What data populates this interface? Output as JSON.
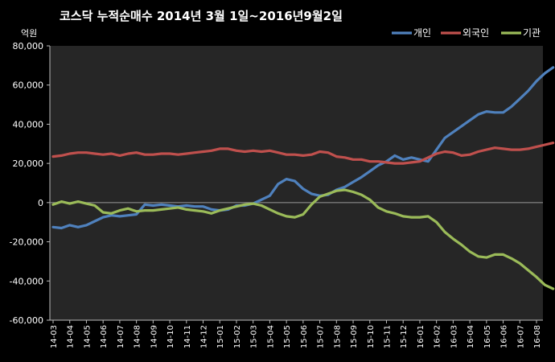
{
  "chart_data": {
    "type": "line",
    "title": "코스닥  누적순매수 2014년 3월 1일~2016년9월2일",
    "unit_label": "억원",
    "ylim": [
      -60000,
      80000
    ],
    "ytick_values": [
      80000,
      60000,
      40000,
      20000,
      0,
      -20000,
      -40000,
      -60000
    ],
    "ytick_labels": [
      "80,000",
      "60,000",
      "40,000",
      "20,000",
      "0",
      "-20,000",
      "-40,000",
      "-60,000"
    ],
    "categories": [
      "14-03",
      "14-04",
      "14-05",
      "14-06",
      "14-07",
      "14-08",
      "14-09",
      "14-10",
      "14-11",
      "14-12",
      "15-01",
      "15-02",
      "15-03",
      "15-04",
      "15-05",
      "15-06",
      "15-07",
      "15-08",
      "15-09",
      "15-10",
      "15-11",
      "15-12",
      "16-01",
      "16-02",
      "16-03",
      "16-04",
      "16-05",
      "16-06",
      "16-07",
      "16-08"
    ],
    "legend_position": "top-right",
    "grid": false,
    "plot_background": "#262626",
    "series": [
      {
        "name": "개인",
        "color": "#4f81bd",
        "values": [
          [
            0,
            -12500
          ],
          [
            0.5,
            -13000
          ],
          [
            1,
            -11500
          ],
          [
            1.5,
            -12500
          ],
          [
            2,
            -11500
          ],
          [
            2.5,
            -9500
          ],
          [
            3,
            -7500
          ],
          [
            3.5,
            -6500
          ],
          [
            4,
            -7000
          ],
          [
            4.5,
            -6500
          ],
          [
            5,
            -6000
          ],
          [
            5.5,
            -1000
          ],
          [
            6,
            -1500
          ],
          [
            6.5,
            -1000
          ],
          [
            7,
            -1500
          ],
          [
            7.5,
            -2000
          ],
          [
            8,
            -1500
          ],
          [
            8.5,
            -2000
          ],
          [
            9,
            -2000
          ],
          [
            9.5,
            -3500
          ],
          [
            10,
            -4000
          ],
          [
            10.5,
            -3500
          ],
          [
            11,
            -1500
          ],
          [
            11.5,
            -1500
          ],
          [
            12,
            -500
          ],
          [
            12.5,
            1500
          ],
          [
            13,
            3500
          ],
          [
            13.5,
            9500
          ],
          [
            14,
            12000
          ],
          [
            14.5,
            11000
          ],
          [
            15,
            7000
          ],
          [
            15.5,
            4500
          ],
          [
            16,
            3500
          ],
          [
            16.5,
            4000
          ],
          [
            17,
            6500
          ],
          [
            17.5,
            8000
          ],
          [
            18,
            10500
          ],
          [
            18.5,
            13000
          ],
          [
            19,
            16000
          ],
          [
            19.5,
            19000
          ],
          [
            20,
            21000
          ],
          [
            20.5,
            24000
          ],
          [
            21,
            22000
          ],
          [
            21.5,
            23000
          ],
          [
            22,
            22000
          ],
          [
            22.5,
            21000
          ],
          [
            23,
            27000
          ],
          [
            23.5,
            33000
          ],
          [
            24,
            36000
          ],
          [
            24.5,
            39000
          ],
          [
            25,
            42000
          ],
          [
            25.5,
            45000
          ],
          [
            26,
            46500
          ],
          [
            26.5,
            46000
          ],
          [
            27,
            46000
          ],
          [
            27.5,
            49000
          ],
          [
            28,
            53000
          ],
          [
            28.5,
            57000
          ],
          [
            29,
            62000
          ],
          [
            29.5,
            66000
          ],
          [
            30,
            69000
          ]
        ]
      },
      {
        "name": "외국인",
        "color": "#c0504d",
        "values": [
          [
            0,
            23500
          ],
          [
            0.5,
            24000
          ],
          [
            1,
            25000
          ],
          [
            1.5,
            25500
          ],
          [
            2,
            25500
          ],
          [
            2.5,
            25000
          ],
          [
            3,
            24500
          ],
          [
            3.5,
            25000
          ],
          [
            4,
            24000
          ],
          [
            4.5,
            25000
          ],
          [
            5,
            25500
          ],
          [
            5.5,
            24500
          ],
          [
            6,
            24500
          ],
          [
            6.5,
            25000
          ],
          [
            7,
            25000
          ],
          [
            7.5,
            24500
          ],
          [
            8,
            25000
          ],
          [
            8.5,
            25500
          ],
          [
            9,
            26000
          ],
          [
            9.5,
            26500
          ],
          [
            10,
            27500
          ],
          [
            10.5,
            27500
          ],
          [
            11,
            26500
          ],
          [
            11.5,
            26000
          ],
          [
            12,
            26500
          ],
          [
            12.5,
            26000
          ],
          [
            13,
            26500
          ],
          [
            13.5,
            25500
          ],
          [
            14,
            24500
          ],
          [
            14.5,
            24500
          ],
          [
            15,
            24000
          ],
          [
            15.5,
            24500
          ],
          [
            16,
            26000
          ],
          [
            16.5,
            25500
          ],
          [
            17,
            23500
          ],
          [
            17.5,
            23000
          ],
          [
            18,
            22000
          ],
          [
            18.5,
            22000
          ],
          [
            19,
            21000
          ],
          [
            19.5,
            21000
          ],
          [
            20,
            20500
          ],
          [
            20.5,
            20000
          ],
          [
            21,
            20000
          ],
          [
            21.5,
            20500
          ],
          [
            22,
            21000
          ],
          [
            22.5,
            23000
          ],
          [
            23,
            25000
          ],
          [
            23.5,
            26000
          ],
          [
            24,
            25500
          ],
          [
            24.5,
            24000
          ],
          [
            25,
            24500
          ],
          [
            25.5,
            26000
          ],
          [
            26,
            27000
          ],
          [
            26.5,
            28000
          ],
          [
            27,
            27500
          ],
          [
            27.5,
            27000
          ],
          [
            28,
            27000
          ],
          [
            28.5,
            27500
          ],
          [
            29,
            28500
          ],
          [
            29.5,
            29500
          ],
          [
            30,
            30500
          ]
        ]
      },
      {
        "name": "기관",
        "color": "#9bbb59",
        "values": [
          [
            0,
            -1000
          ],
          [
            0.5,
            500
          ],
          [
            1,
            -500
          ],
          [
            1.5,
            500
          ],
          [
            2,
            -500
          ],
          [
            2.5,
            -1500
          ],
          [
            3,
            -5000
          ],
          [
            3.5,
            -5500
          ],
          [
            4,
            -4000
          ],
          [
            4.5,
            -3000
          ],
          [
            5,
            -4500
          ],
          [
            5.5,
            -4000
          ],
          [
            6,
            -4000
          ],
          [
            6.5,
            -3500
          ],
          [
            7,
            -3000
          ],
          [
            7.5,
            -2500
          ],
          [
            8,
            -3500
          ],
          [
            8.5,
            -4000
          ],
          [
            9,
            -4500
          ],
          [
            9.5,
            -5500
          ],
          [
            10,
            -4000
          ],
          [
            10.5,
            -3000
          ],
          [
            11,
            -2000
          ],
          [
            11.5,
            -1000
          ],
          [
            12,
            -500
          ],
          [
            12.5,
            -1500
          ],
          [
            13,
            -3500
          ],
          [
            13.5,
            -5500
          ],
          [
            14,
            -7000
          ],
          [
            14.5,
            -7500
          ],
          [
            15,
            -6000
          ],
          [
            15.5,
            -1000
          ],
          [
            16,
            3000
          ],
          [
            16.5,
            4500
          ],
          [
            17,
            6000
          ],
          [
            17.5,
            6500
          ],
          [
            18,
            5500
          ],
          [
            18.5,
            4000
          ],
          [
            19,
            1500
          ],
          [
            19.5,
            -2500
          ],
          [
            20,
            -4500
          ],
          [
            20.5,
            -5500
          ],
          [
            21,
            -7000
          ],
          [
            21.5,
            -7500
          ],
          [
            22,
            -7500
          ],
          [
            22.5,
            -7000
          ],
          [
            23,
            -10000
          ],
          [
            23.5,
            -15000
          ],
          [
            24,
            -18500
          ],
          [
            24.5,
            -21500
          ],
          [
            25,
            -25000
          ],
          [
            25.5,
            -27500
          ],
          [
            26,
            -28000
          ],
          [
            26.5,
            -26500
          ],
          [
            27,
            -26500
          ],
          [
            27.5,
            -28500
          ],
          [
            28,
            -31000
          ],
          [
            28.5,
            -34500
          ],
          [
            29,
            -38000
          ],
          [
            29.5,
            -42000
          ],
          [
            30,
            -44000
          ]
        ]
      }
    ]
  }
}
